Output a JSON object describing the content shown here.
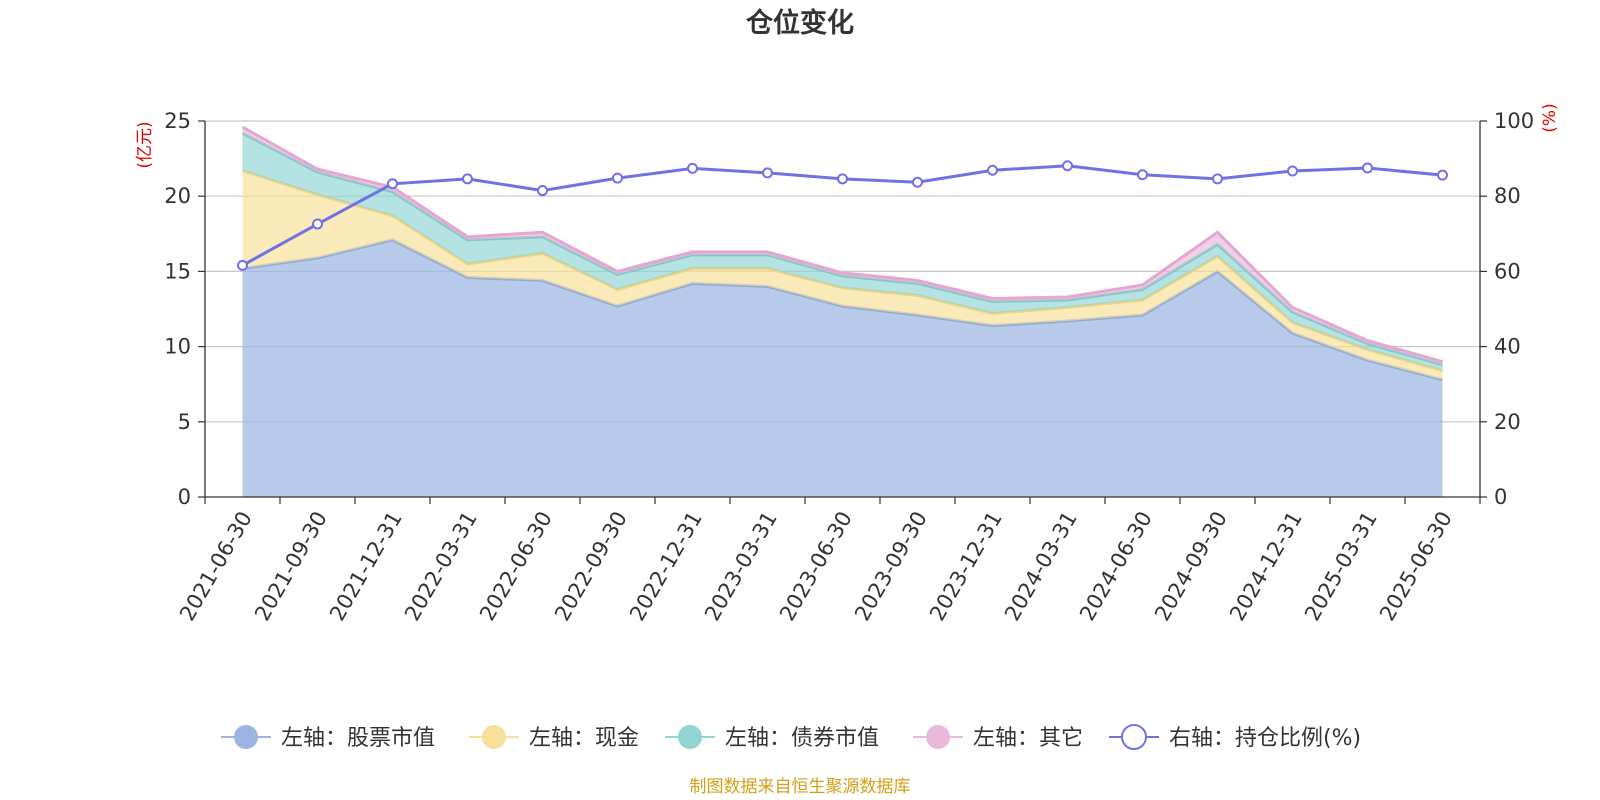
{
  "chart_data": {
    "type": "area",
    "title": "仓位变化",
    "left_axis_unit": "(亿元)",
    "right_axis_unit": "(%)",
    "left_ylim": [
      0,
      25
    ],
    "left_ticks": [
      0,
      5,
      10,
      15,
      20,
      25
    ],
    "right_ylim": [
      0,
      100
    ],
    "right_ticks": [
      0,
      20,
      40,
      60,
      80,
      100
    ],
    "grid": true,
    "legend_position": "bottom",
    "categories": [
      "2021-06-30",
      "2021-09-30",
      "2021-12-31",
      "2022-03-31",
      "2022-06-30",
      "2022-09-30",
      "2022-12-31",
      "2023-03-31",
      "2023-06-30",
      "2023-09-30",
      "2023-12-31",
      "2024-03-31",
      "2024-06-30",
      "2024-09-30",
      "2024-12-31",
      "2025-03-31",
      "2025-06-30"
    ],
    "series": [
      {
        "name": "左轴：股票市值",
        "axis": "left",
        "kind": "stacked-area",
        "color": "#9bb5e0",
        "values": [
          15.2,
          15.9,
          17.1,
          14.6,
          14.4,
          12.7,
          14.2,
          14.0,
          12.7,
          12.1,
          11.4,
          11.7,
          12.1,
          15.0,
          10.9,
          9.1,
          7.8
        ]
      },
      {
        "name": "左轴：现金",
        "axis": "left",
        "kind": "stacked-area",
        "color": "#f7e09a",
        "values": [
          6.5,
          4.2,
          1.6,
          0.9,
          1.8,
          1.1,
          1.0,
          1.2,
          1.2,
          1.3,
          0.8,
          0.9,
          1.0,
          1.0,
          0.7,
          0.7,
          0.6
        ]
      },
      {
        "name": "左轴：债券市值",
        "axis": "left",
        "kind": "stacked-area",
        "color": "#92d4d4",
        "values": [
          2.5,
          1.5,
          1.6,
          1.6,
          1.1,
          1.0,
          0.9,
          0.9,
          0.8,
          0.8,
          0.8,
          0.5,
          0.7,
          0.8,
          0.7,
          0.4,
          0.4
        ]
      },
      {
        "name": "左轴：其它",
        "axis": "left",
        "kind": "stacked-area",
        "color": "#e9b9dc",
        "values": [
          0.4,
          0.2,
          0.3,
          0.2,
          0.3,
          0.2,
          0.2,
          0.2,
          0.2,
          0.2,
          0.2,
          0.2,
          0.3,
          0.8,
          0.3,
          0.2,
          0.2
        ]
      },
      {
        "name": "右轴：持仓比例(%)",
        "axis": "right",
        "kind": "line",
        "color": "#7171e6",
        "values": [
          61.6,
          72.6,
          83.3,
          84.6,
          81.5,
          84.8,
          87.4,
          86.2,
          84.6,
          83.7,
          86.9,
          88.1,
          85.7,
          84.6,
          86.7,
          87.5,
          85.6
        ]
      }
    ]
  },
  "footer": {
    "source": "制图数据来自恒生聚源数据库"
  }
}
